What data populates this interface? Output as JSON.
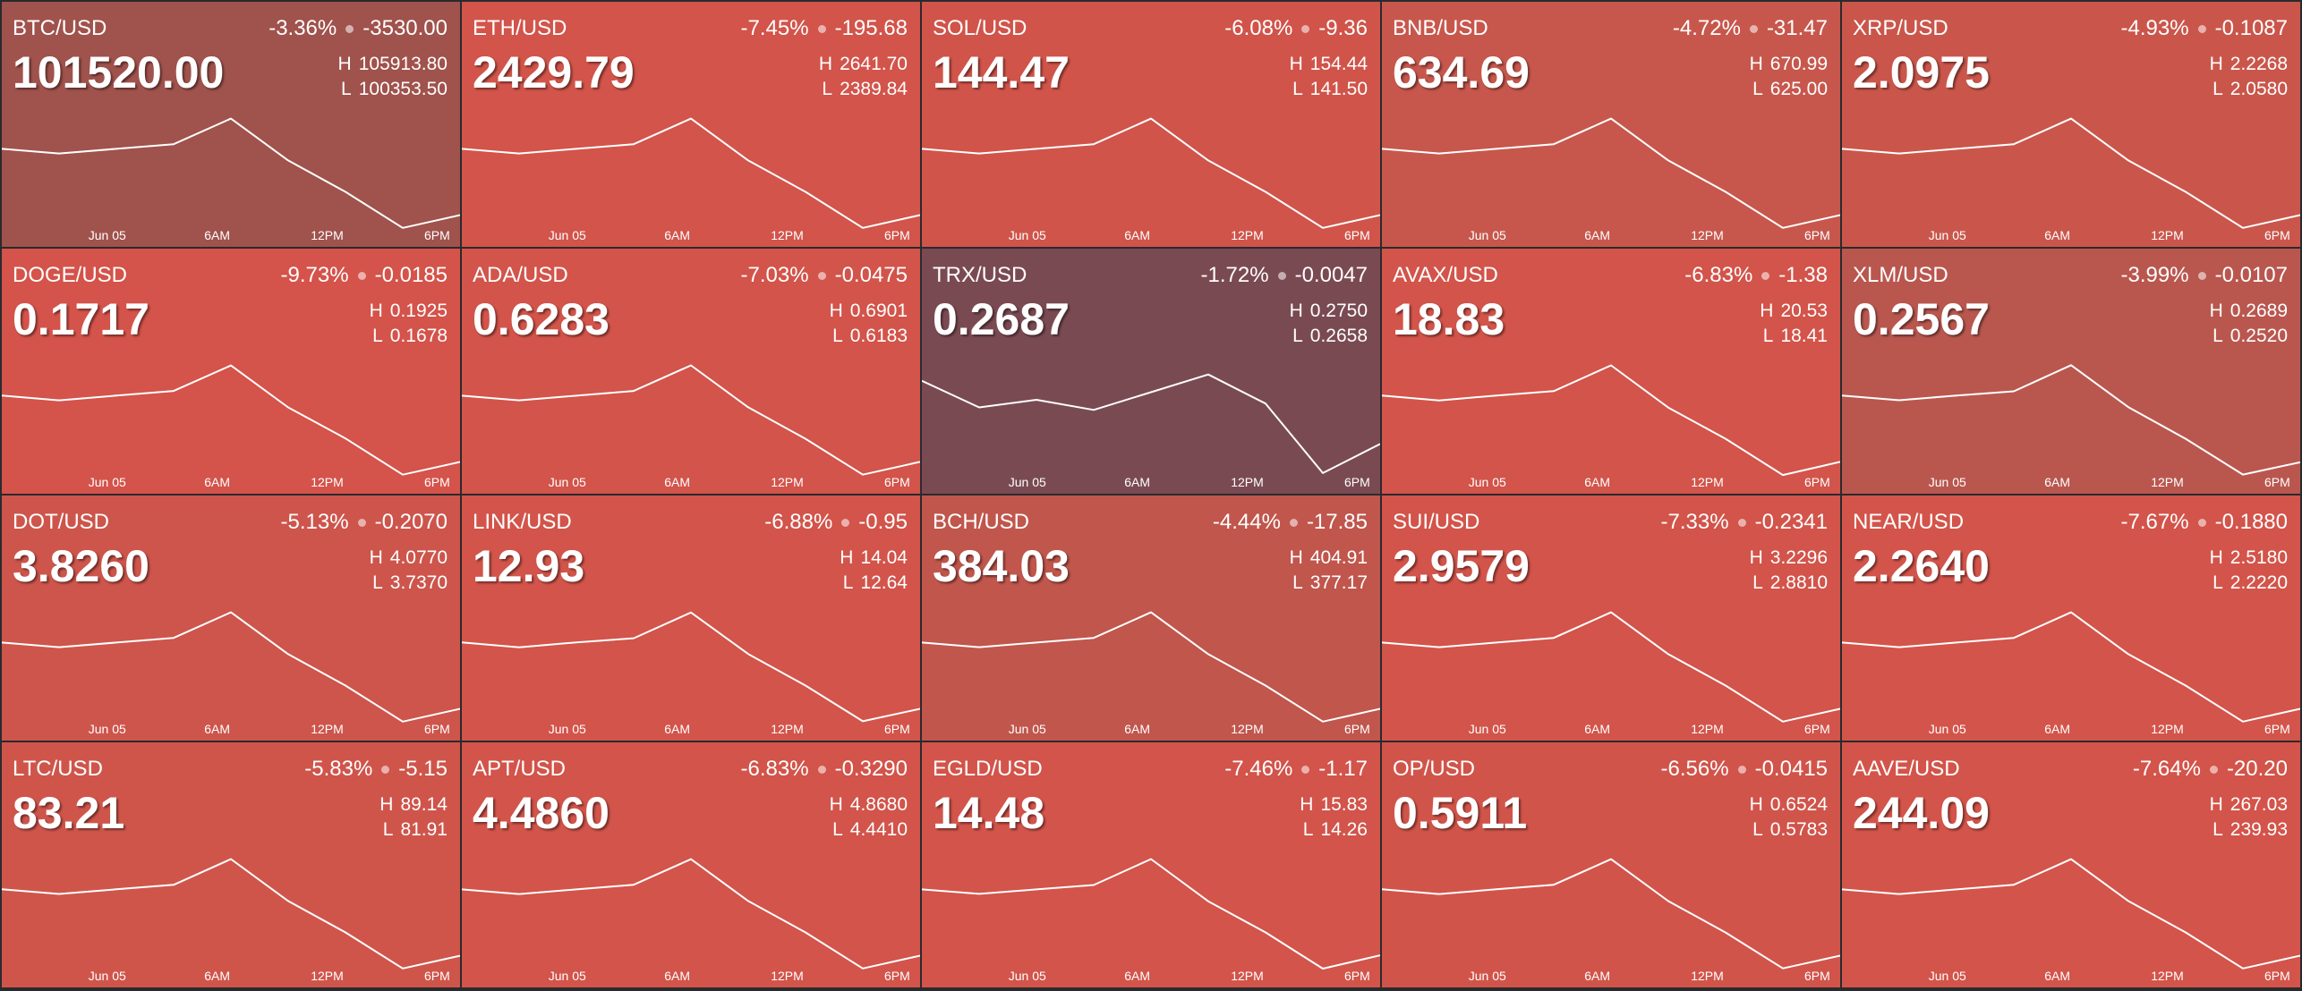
{
  "tiles": [
    {
      "symbol": "BTC/USD",
      "change_pct": "-3.36%",
      "change": "-3530.00",
      "price": "101520.00",
      "high": "105913.80",
      "low": "100353.50",
      "color": "#a0524c",
      "spark": [
        104357,
        104135,
        104357,
        104579,
        105802,
        103801,
        102300,
        100576,
        101188
      ]
    },
    {
      "symbol": "ETH/USD",
      "change_pct": "-7.45%",
      "change": "-195.68",
      "price": "2429.79",
      "high": "2641.70",
      "low": "2389.84",
      "color": "#d2544a",
      "spark": [
        2571.1,
        2561.1,
        2571.1,
        2581.2,
        2636.6,
        2546.0,
        2478.0,
        2399.9,
        2427.6
      ]
    },
    {
      "symbol": "SOL/USD",
      "change_pct": "-6.08%",
      "change": "-9.36",
      "price": "144.47",
      "high": "154.44",
      "low": "141.50",
      "color": "#d0544a",
      "spark": [
        150.82,
        150.3,
        150.82,
        151.33,
        154.18,
        149.52,
        146.03,
        142.02,
        143.44
      ]
    },
    {
      "symbol": "BNB/USD",
      "change_pct": "-4.72%",
      "change": "-31.47",
      "price": "634.69",
      "high": "670.99",
      "low": "625.00",
      "color": "#c7574c",
      "spark": [
        658.11,
        656.27,
        658.11,
        659.95,
        670.07,
        653.51,
        641.1,
        626.84,
        631.9
      ]
    },
    {
      "symbol": "XRP/USD",
      "change_pct": "-4.93%",
      "change": "-0.1087",
      "price": "2.0975",
      "high": "2.2268",
      "low": "2.0580",
      "color": "#ca564b",
      "spark": [
        2.1795,
        2.1728,
        2.1795,
        2.1863,
        2.2234,
        2.1627,
        2.1171,
        2.0648,
        2.0833
      ]
    },
    {
      "symbol": "DOGE/USD",
      "change_pct": "-9.73%",
      "change": "-0.0185",
      "price": "0.1717",
      "high": "0.1925",
      "low": "0.1678",
      "color": "#d4534a",
      "spark": [
        0.1856,
        0.1846,
        0.1856,
        0.1866,
        0.192,
        0.1831,
        0.1765,
        0.1688,
        0.1715
      ]
    },
    {
      "symbol": "ADA/USD",
      "change_pct": "-7.03%",
      "change": "-0.0475",
      "price": "0.6283",
      "high": "0.6901",
      "low": "0.6183",
      "color": "#d2544a",
      "spark": [
        0.67,
        0.6671,
        0.67,
        0.6729,
        0.6887,
        0.6628,
        0.6434,
        0.6212,
        0.6291
      ]
    },
    {
      "symbol": "TRX/USD",
      "change_pct": "-1.72%",
      "change": "-0.0047",
      "price": "0.2687",
      "high": "0.2750",
      "low": "0.2658",
      "color": "#7a4a52",
      "spark": [
        0.2736,
        0.2715,
        0.2721,
        0.2713,
        0.2727,
        0.2741,
        0.2718,
        0.2663,
        0.2686
      ]
    },
    {
      "symbol": "AVAX/USD",
      "change_pct": "-6.83%",
      "change": "-1.38",
      "price": "18.83",
      "high": "20.53",
      "low": "18.41",
      "color": "#d2544a",
      "spark": [
        19.94,
        19.85,
        19.94,
        20.02,
        20.49,
        19.72,
        19.15,
        18.49,
        18.73
      ]
    },
    {
      "symbol": "XLM/USD",
      "change_pct": "-3.99%",
      "change": "-0.0107",
      "price": "0.2567",
      "high": "0.2689",
      "low": "0.2520",
      "color": "#b9574f",
      "spark": [
        0.2642,
        0.2635,
        0.2642,
        0.2648,
        0.2686,
        0.2625,
        0.2579,
        0.2527,
        0.2545
      ]
    },
    {
      "symbol": "DOT/USD",
      "change_pct": "-5.13%",
      "change": "-0.2070",
      "price": "3.8260",
      "high": "4.0770",
      "low": "3.7370",
      "color": "#cd554b",
      "spark": [
        3.9818,
        3.9682,
        3.9818,
        3.9954,
        4.0702,
        3.9478,
        3.856,
        3.7506,
        3.788
      ]
    },
    {
      "symbol": "LINK/USD",
      "change_pct": "-6.88%",
      "change": "-0.95",
      "price": "12.93",
      "high": "14.04",
      "low": "12.64",
      "color": "#d2544a",
      "spark": [
        13.65,
        13.59,
        13.65,
        13.7,
        14.01,
        13.51,
        13.13,
        12.7,
        12.85
      ]
    },
    {
      "symbol": "BCH/USD",
      "change_pct": "-4.44%",
      "change": "-17.85",
      "price": "384.03",
      "high": "404.91",
      "low": "377.17",
      "color": "#c0564c",
      "spark": [
        397.14,
        396.03,
        397.14,
        398.25,
        404.36,
        394.37,
        386.88,
        378.28,
        381.33
      ]
    },
    {
      "symbol": "SUI/USD",
      "change_pct": "-7.33%",
      "change": "-0.2341",
      "price": "2.9579",
      "high": "3.2296",
      "low": "2.8810",
      "color": "#d2544a",
      "spark": [
        3.132,
        3.118,
        3.132,
        3.1459,
        3.2226,
        3.0971,
        3.003,
        2.8949,
        2.9333
      ]
    },
    {
      "symbol": "NEAR/USD",
      "change_pct": "-7.67%",
      "change": "-0.1880",
      "price": "2.2640",
      "high": "2.5180",
      "low": "2.2220",
      "color": "#d3544a",
      "spark": [
        2.4351,
        2.4233,
        2.4351,
        2.447,
        2.5121,
        2.4055,
        2.3256,
        2.2338,
        2.2664
      ]
    },
    {
      "symbol": "LTC/USD",
      "change_pct": "-5.83%",
      "change": "-5.15",
      "price": "83.21",
      "high": "89.14",
      "low": "81.91",
      "color": "#cf554b",
      "spark": [
        87.12,
        86.83,
        87.12,
        87.4,
        89.0,
        86.39,
        84.44,
        82.2,
        82.99
      ]
    },
    {
      "symbol": "APT/USD",
      "change_pct": "-6.83%",
      "change": "-0.3290",
      "price": "4.4860",
      "high": "4.8680",
      "low": "4.4410",
      "color": "#d2544a",
      "spark": [
        4.7484,
        4.7314,
        4.7484,
        4.7655,
        4.8595,
        4.7057,
        4.5905,
        4.4581,
        4.5051
      ]
    },
    {
      "symbol": "EGLD/USD",
      "change_pct": "-7.46%",
      "change": "-1.17",
      "price": "14.48",
      "high": "15.83",
      "low": "14.26",
      "color": "#d2544a",
      "spark": [
        15.39,
        15.33,
        15.39,
        15.45,
        15.8,
        15.23,
        14.81,
        14.32,
        14.5
      ]
    },
    {
      "symbol": "OP/USD",
      "change_pct": "-6.56%",
      "change": "-0.0415",
      "price": "0.5911",
      "high": "0.6524",
      "low": "0.5783",
      "color": "#d1544a",
      "spark": [
        0.6317,
        0.6287,
        0.6317,
        0.6346,
        0.6509,
        0.6242,
        0.6042,
        0.5813,
        0.5894
      ]
    },
    {
      "symbol": "AAVE/USD",
      "change_pct": "-7.64%",
      "change": "-20.20",
      "price": "244.09",
      "high": "267.03",
      "low": "239.93",
      "color": "#d3544a",
      "spark": [
        259.44,
        258.36,
        259.44,
        260.53,
        266.49,
        256.73,
        249.42,
        241.01,
        244.0
      ]
    }
  ],
  "time_labels": [
    "Jun 05",
    "6AM",
    "12PM",
    "6PM"
  ],
  "high_prefix": "H",
  "low_prefix": "L"
}
